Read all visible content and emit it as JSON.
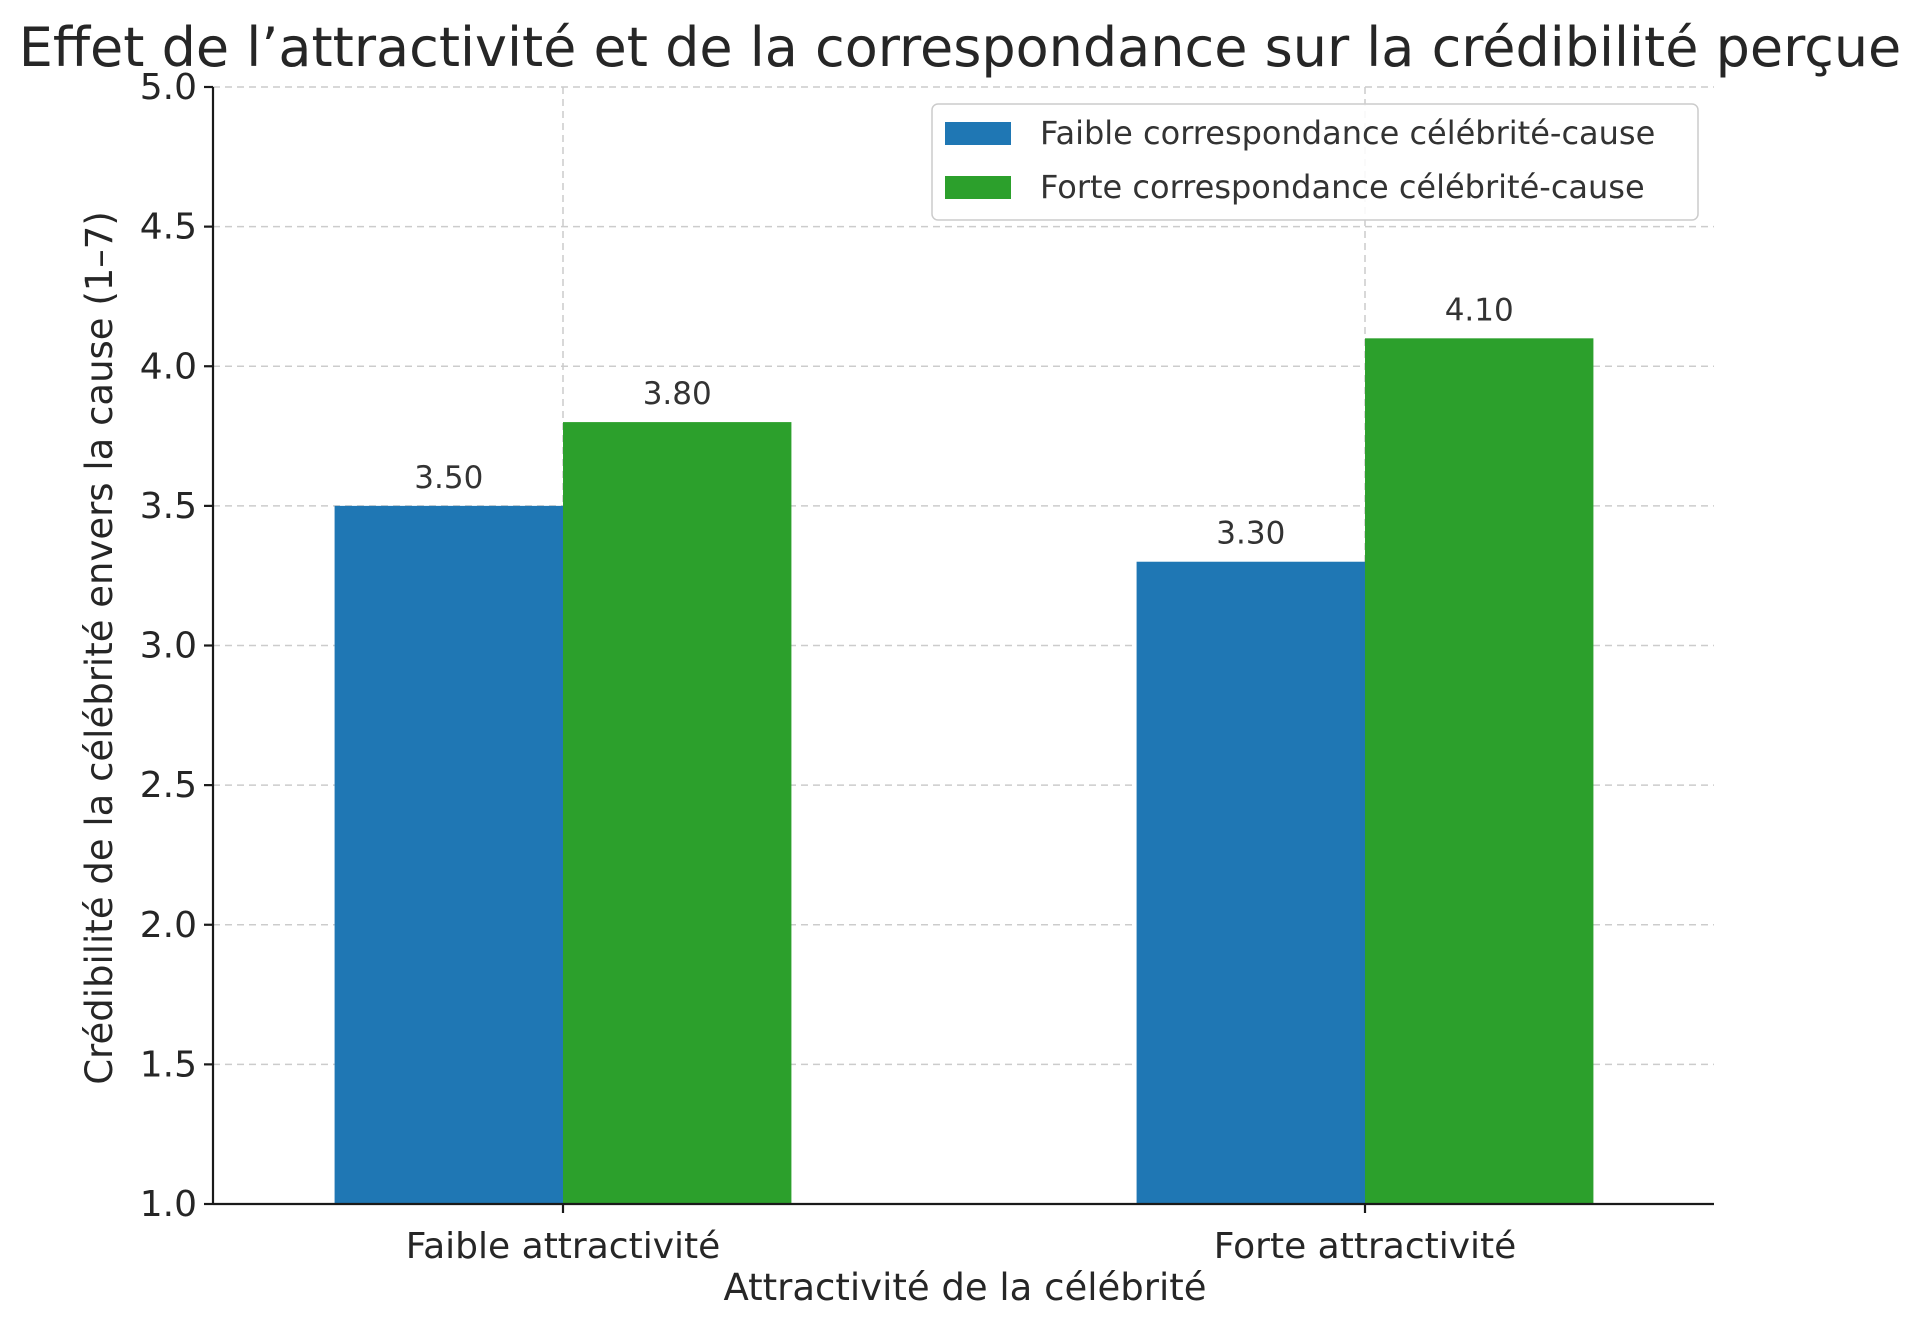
{
  "chart_data": {
    "type": "bar",
    "title": "Effet de l’attractivité et de la correspondance sur la crédibilité perçue",
    "xlabel": "Attractivité de la célébrité",
    "ylabel": "Crédibilité de la célébrité envers la cause (1–7)",
    "categories": [
      "Faible attractivité",
      "Forte attractivité"
    ],
    "series": [
      {
        "name": "Faible correspondance célébrité-cause",
        "values": [
          3.5,
          3.3
        ],
        "labels": [
          "3.50",
          "3.30"
        ],
        "color": "#1f77b4"
      },
      {
        "name": "Forte correspondance célébrité-cause",
        "values": [
          3.8,
          4.1
        ],
        "labels": [
          "3.80",
          "4.10"
        ],
        "color": "#2ca02c"
      }
    ],
    "ylim": [
      1.0,
      5.0
    ],
    "yticks": [
      1.0,
      1.5,
      2.0,
      2.5,
      3.0,
      3.5,
      4.0,
      4.5,
      5.0
    ],
    "ytick_labels": [
      "1.0",
      "1.5",
      "2.0",
      "2.5",
      "3.0",
      "3.5",
      "4.0",
      "4.5",
      "5.0"
    ],
    "grid": true,
    "legend_position": "top-right"
  }
}
